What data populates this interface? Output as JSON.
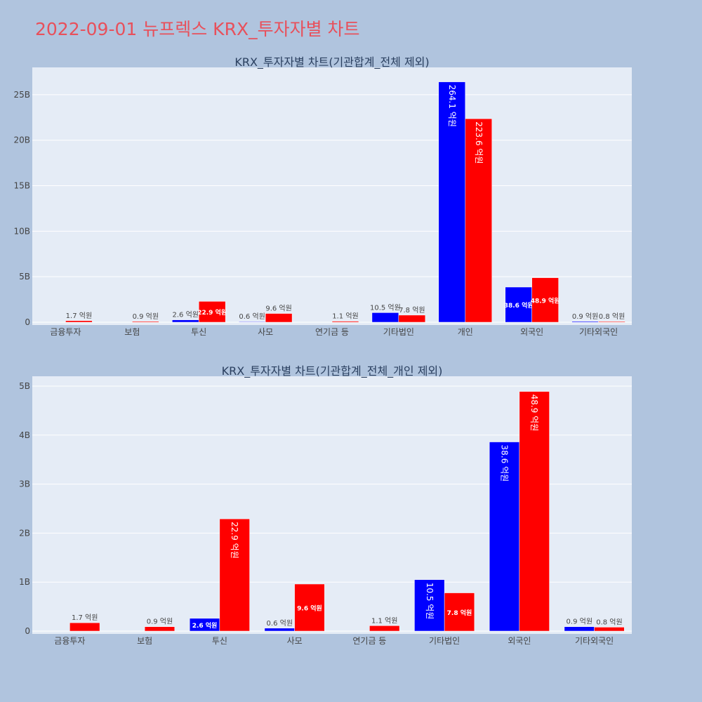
{
  "page_title": "2022-09-01 뉴프렉스 KRX_투자자별 차트",
  "colors": {
    "series_a": "#0000ff",
    "series_b": "#ff0000",
    "plot_bg": "#e5ecf6",
    "page_bg": "#b0c4de",
    "title": "#e8505b"
  },
  "chart_data": [
    {
      "type": "bar",
      "title": "KRX_투자자별 차트(기관합계_전체 제외)",
      "categories": [
        "금융투자",
        "보험",
        "투신",
        "사모",
        "연기금 등",
        "기타법인",
        "개인",
        "외국인",
        "기타외국인"
      ],
      "series": [
        {
          "color": "#0000ff",
          "values": [
            0,
            0,
            260000000,
            60000000,
            0,
            1050000000,
            26410000000,
            3860000000,
            90000000
          ],
          "labels": [
            "",
            "",
            "2.6 억원",
            "0.6 억원",
            "",
            "10.5 억원",
            "264.1 억원",
            "38.6 억원",
            "0.9 억원"
          ]
        },
        {
          "color": "#ff0000",
          "values": [
            170000000,
            90000000,
            2290000000,
            960000000,
            110000000,
            780000000,
            22360000000,
            4890000000,
            80000000
          ],
          "labels": [
            "1.7 억원",
            "0.9 억원",
            "22.9 억원",
            "9.6 억원",
            "1.1 억원",
            "7.8 억원",
            "223.6 억원",
            "48.9 억원",
            "0.8 억원"
          ]
        }
      ],
      "ylim": [
        0,
        28000000000
      ],
      "yticks": [
        0,
        5000000000,
        10000000000,
        15000000000,
        20000000000,
        25000000000
      ],
      "ytick_labels": [
        "0",
        "5B",
        "10B",
        "15B",
        "20B",
        "25B"
      ],
      "grid": true
    },
    {
      "type": "bar",
      "title": "KRX_투자자별 차트(기관합계_전체_개인 제외)",
      "categories": [
        "금융투자",
        "보험",
        "투신",
        "사모",
        "연기금 등",
        "기타법인",
        "외국인",
        "기타외국인"
      ],
      "series": [
        {
          "color": "#0000ff",
          "values": [
            0,
            0,
            260000000,
            60000000,
            0,
            1050000000,
            3860000000,
            90000000
          ],
          "labels": [
            "",
            "",
            "2.6 억원",
            "0.6 억원",
            "",
            "10.5 억원",
            "38.6 억원",
            "0.9 억원"
          ]
        },
        {
          "color": "#ff0000",
          "values": [
            170000000,
            90000000,
            2290000000,
            960000000,
            110000000,
            780000000,
            4890000000,
            80000000
          ],
          "labels": [
            "1.7 억원",
            "0.9 억원",
            "22.9 억원",
            "9.6 억원",
            "1.1 억원",
            "7.8 억원",
            "48.9 억원",
            "0.8 억원"
          ]
        }
      ],
      "ylim": [
        0,
        5200000000
      ],
      "yticks": [
        0,
        1000000000,
        2000000000,
        3000000000,
        4000000000,
        5000000000
      ],
      "ytick_labels": [
        "0",
        "1B",
        "2B",
        "3B",
        "4B",
        "5B"
      ],
      "grid": true
    }
  ]
}
